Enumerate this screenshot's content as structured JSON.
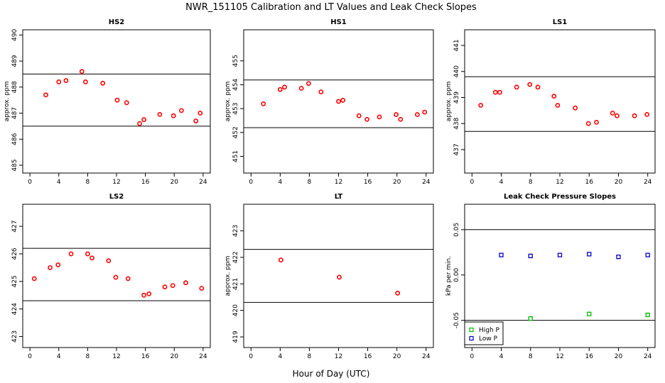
{
  "suptitle": "NWR_151105  Calibration and LT Values and Leak Check Slopes",
  "common_xlabel": "Hour of Day (UTC)",
  "colors": {
    "red": "#ff0000",
    "green": "#00bb00",
    "blue": "#0000cc",
    "line": "#000000"
  },
  "chart_data": [
    {
      "type": "scatter",
      "title": "HS2",
      "ylabel": "approx. ppm",
      "xlim": [
        -1,
        25
      ],
      "ylim": [
        484.7,
        490.2
      ],
      "xticks": [
        0,
        4,
        8,
        12,
        16,
        20,
        24
      ],
      "xtick_labels": [
        "0",
        "4",
        "8",
        "12",
        "16",
        "20",
        "24"
      ],
      "yticks": [
        485,
        486,
        487,
        488,
        489,
        490
      ],
      "ytick_labels": [
        "485",
        "486",
        "487",
        "488",
        "489",
        "490"
      ],
      "hlines": [
        486.5,
        488.5
      ],
      "series": [
        {
          "name": "HS2",
          "color": "red",
          "x": [
            2.2,
            4.0,
            5.0,
            7.2,
            7.7,
            10.1,
            12.1,
            13.4,
            15.2,
            15.8,
            18.0,
            19.9,
            21.0,
            23.0,
            23.6
          ],
          "y": [
            487.7,
            488.2,
            488.25,
            488.6,
            488.2,
            488.15,
            487.5,
            487.4,
            486.6,
            486.75,
            486.95,
            486.9,
            487.1,
            486.7,
            487.0
          ]
        }
      ]
    },
    {
      "type": "scatter",
      "title": "HS1",
      "ylabel": "approx. ppm",
      "xlim": [
        -1,
        25
      ],
      "ylim": [
        450.3,
        456.3
      ],
      "xticks": [
        0,
        4,
        8,
        12,
        16,
        20,
        24
      ],
      "xtick_labels": [
        "0",
        "4",
        "8",
        "12",
        "16",
        "20",
        "24"
      ],
      "yticks": [
        451,
        452,
        453,
        454,
        455
      ],
      "ytick_labels": [
        "451",
        "452",
        "453",
        "454",
        "455"
      ],
      "hlines": [
        452.2,
        454.2
      ],
      "series": [
        {
          "name": "HS1",
          "color": "red",
          "x": [
            1.7,
            4.0,
            4.6,
            6.9,
            7.9,
            9.6,
            12.0,
            12.6,
            14.8,
            15.9,
            17.6,
            19.9,
            20.5,
            22.8,
            23.8
          ],
          "y": [
            453.2,
            453.8,
            453.9,
            453.85,
            454.05,
            453.7,
            453.3,
            453.35,
            452.7,
            452.55,
            452.65,
            452.75,
            452.55,
            452.75,
            452.85
          ]
        }
      ]
    },
    {
      "type": "scatter",
      "title": "LS1",
      "ylabel": "approx. ppm",
      "xlim": [
        -1,
        25
      ],
      "ylim": [
        436.1,
        441.6
      ],
      "xticks": [
        0,
        4,
        8,
        12,
        16,
        20,
        24
      ],
      "xtick_labels": [
        "0",
        "4",
        "8",
        "12",
        "16",
        "20",
        "24"
      ],
      "yticks": [
        437,
        438,
        439,
        440,
        441
      ],
      "ytick_labels": [
        "437",
        "438",
        "439",
        "440",
        "441"
      ],
      "hlines": [
        437.7,
        439.8
      ],
      "series": [
        {
          "name": "LS1",
          "color": "red",
          "x": [
            1.2,
            3.2,
            3.8,
            6.1,
            7.9,
            9.0,
            11.2,
            11.7,
            14.1,
            15.9,
            17.0,
            19.2,
            19.8,
            22.2,
            23.9
          ],
          "y": [
            438.7,
            439.2,
            439.2,
            439.4,
            439.5,
            439.4,
            439.05,
            438.7,
            438.6,
            438.0,
            438.05,
            438.4,
            438.3,
            438.3,
            438.35
          ]
        }
      ]
    },
    {
      "type": "scatter",
      "title": "LS2",
      "ylabel": "",
      "xlim": [
        -1,
        25
      ],
      "ylim": [
        422.6,
        427.8
      ],
      "xticks": [
        0,
        4,
        8,
        12,
        16,
        20,
        24
      ],
      "xtick_labels": [
        "0",
        "4",
        "8",
        "12",
        "16",
        "20",
        "24"
      ],
      "yticks": [
        423,
        424,
        425,
        426,
        427
      ],
      "ytick_labels": [
        "423",
        "424",
        "425",
        "426",
        "427"
      ],
      "hlines": [
        424.3,
        426.2
      ],
      "series": [
        {
          "name": "LS2",
          "color": "red",
          "x": [
            0.6,
            2.8,
            3.9,
            5.7,
            8.0,
            8.6,
            10.9,
            11.9,
            13.6,
            15.8,
            16.5,
            18.7,
            19.8,
            21.6,
            23.8
          ],
          "y": [
            425.1,
            425.5,
            425.6,
            426.0,
            426.0,
            425.85,
            425.75,
            425.15,
            425.1,
            424.5,
            424.55,
            424.8,
            424.85,
            424.95,
            424.75
          ]
        }
      ]
    },
    {
      "type": "scatter",
      "title": "LT",
      "ylabel": "approx. ppm",
      "xlim": [
        -1,
        25
      ],
      "ylim": [
        418.6,
        424.0
      ],
      "xticks": [
        0,
        4,
        8,
        12,
        16,
        20,
        24
      ],
      "xtick_labels": [
        "0",
        "4",
        "8",
        "12",
        "16",
        "20",
        "24"
      ],
      "yticks": [
        419,
        420,
        421,
        422,
        423
      ],
      "ytick_labels": [
        "419",
        "420",
        "421",
        "422",
        "423"
      ],
      "hlines": [
        420.3,
        422.3
      ],
      "series": [
        {
          "name": "LT",
          "color": "red",
          "x": [
            4.1,
            12.1,
            20.1
          ],
          "y": [
            421.9,
            421.25,
            420.65
          ]
        }
      ]
    },
    {
      "type": "scatter",
      "title": "Leak Check Pressure Slopes",
      "ylabel": "kPa per min.",
      "xlim": [
        -1,
        25
      ],
      "ylim": [
        -0.08,
        0.078
      ],
      "xticks": [
        0,
        4,
        8,
        12,
        16,
        20,
        24
      ],
      "xtick_labels": [
        "0",
        "4",
        "8",
        "12",
        "16",
        "20",
        "24"
      ],
      "yticks": [
        -0.05,
        0.0,
        0.05
      ],
      "ytick_labels": [
        "-0.05",
        "0.00",
        "0.05"
      ],
      "hlines": [
        -0.05,
        0.05
      ],
      "legend": {
        "position": "bottom-left",
        "entries": [
          {
            "label": "High P",
            "color": "green"
          },
          {
            "label": "Low P",
            "color": "blue"
          }
        ]
      },
      "series": [
        {
          "name": "High P",
          "color": "green",
          "marker": "square",
          "x": [
            8.0,
            16.0,
            24.0
          ],
          "y": [
            -0.048,
            -0.043,
            -0.044
          ]
        },
        {
          "name": "Low P",
          "color": "blue",
          "marker": "square",
          "x": [
            4.0,
            8.0,
            12.0,
            16.0,
            20.0,
            24.0
          ],
          "y": [
            0.022,
            0.021,
            0.022,
            0.023,
            0.02,
            0.022
          ]
        }
      ]
    }
  ]
}
